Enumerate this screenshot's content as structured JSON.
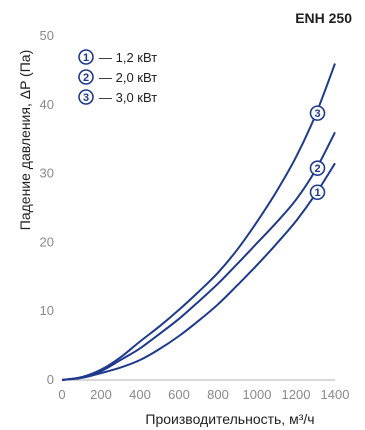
{
  "chart_data": {
    "type": "line",
    "title": "ENH 250",
    "xlabel": "Производительность, м³/ч",
    "ylabel": "Падение давления, ΔP (Па)",
    "xlim": [
      0,
      1400
    ],
    "ylim": [
      0,
      50
    ],
    "x_ticks": [
      "0",
      "200",
      "400",
      "600",
      "800",
      "1000",
      "1200",
      "1400"
    ],
    "y_ticks": [
      "0",
      "10",
      "20",
      "30",
      "40",
      "50"
    ],
    "grid": false,
    "legend_position": "top-left",
    "line_color": "#1f3a8c",
    "series": [
      {
        "name": "— 1,2 кВт",
        "marker": "1",
        "x": [
          0,
          100,
          200,
          300,
          400,
          500,
          600,
          700,
          800,
          900,
          1000,
          1100,
          1200,
          1300,
          1400
        ],
        "y": [
          0,
          0.3,
          1.0,
          1.8,
          2.9,
          4.5,
          6.4,
          8.6,
          11.0,
          13.8,
          16.7,
          19.8,
          23.1,
          27.0,
          31.5
        ]
      },
      {
        "name": "— 2,0 кВт",
        "marker": "2",
        "x": [
          0,
          100,
          200,
          300,
          400,
          500,
          600,
          700,
          800,
          900,
          1000,
          1100,
          1200,
          1300,
          1400
        ],
        "y": [
          0,
          0.4,
          1.3,
          2.9,
          4.6,
          6.7,
          8.9,
          11.4,
          14.0,
          16.9,
          19.9,
          22.9,
          26.2,
          30.5,
          36.0
        ]
      },
      {
        "name": "— 3,0 кВт",
        "marker": "3",
        "x": [
          0,
          100,
          200,
          300,
          400,
          500,
          600,
          700,
          800,
          900,
          1000,
          1100,
          1200,
          1300,
          1400
        ],
        "y": [
          0,
          0.4,
          1.5,
          3.3,
          5.6,
          7.8,
          10.2,
          12.8,
          15.6,
          19.0,
          23.0,
          27.4,
          32.4,
          38.5,
          46.0
        ]
      }
    ],
    "curve_label_x": 1300
  }
}
